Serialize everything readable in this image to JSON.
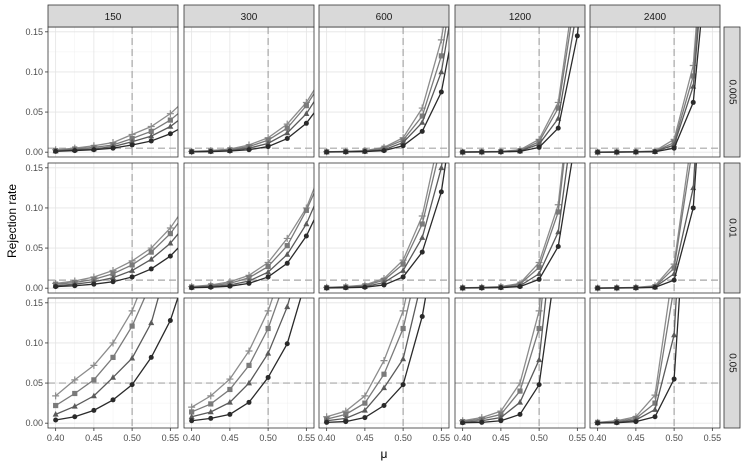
{
  "chart_data": {
    "type": "line",
    "facet_columns": [
      "150",
      "300",
      "600",
      "1200",
      "2400"
    ],
    "facet_rows": [
      "0.005",
      "0.01",
      "0.05"
    ],
    "xlabel": "μ",
    "ylabel": "Rejection rate",
    "xlim": [
      0.39,
      0.56
    ],
    "ylim": [
      -0.006,
      0.156
    ],
    "x_ticks": [
      0.4,
      0.45,
      0.5,
      0.55
    ],
    "x_tick_labels": [
      "0.40",
      "0.45",
      "0.50",
      "0.55"
    ],
    "y_ticks": [
      0.0,
      0.05,
      0.1,
      0.15
    ],
    "y_tick_labels": [
      "0.00",
      "0.05",
      "0.10",
      "0.15"
    ],
    "vertical_reference_x": 0.5,
    "horizontal_reference_y_by_row": [
      0.005,
      0.01,
      0.05
    ],
    "x": [
      0.4,
      0.425,
      0.45,
      0.475,
      0.5,
      0.525,
      0.55,
      0.575
    ],
    "series_styles": [
      {
        "marker": "plus",
        "color": "#8c8c8c"
      },
      {
        "marker": "square",
        "color": "#7a7a7a"
      },
      {
        "marker": "triangle",
        "color": "#5a5a5a"
      },
      {
        "marker": "circle",
        "color": "#2a2a2a"
      }
    ],
    "grid": true,
    "panels": [
      [
        {
          "series": [
            [
              0.003,
              0.005,
              0.008,
              0.012,
              0.022,
              0.032,
              0.048,
              0.07
            ],
            [
              0.002,
              0.004,
              0.006,
              0.009,
              0.017,
              0.026,
              0.04,
              0.06
            ],
            [
              0.0015,
              0.003,
              0.004,
              0.007,
              0.013,
              0.02,
              0.032,
              0.05
            ],
            [
              0.001,
              0.002,
              0.003,
              0.005,
              0.009,
              0.014,
              0.023,
              0.036
            ]
          ]
        },
        {
          "series": [
            [
              0.001,
              0.002,
              0.004,
              0.009,
              0.018,
              0.035,
              0.062,
              0.1
            ],
            [
              0.0008,
              0.0015,
              0.003,
              0.007,
              0.015,
              0.03,
              0.058,
              0.095
            ],
            [
              0.0006,
              0.001,
              0.002,
              0.005,
              0.011,
              0.024,
              0.048,
              0.085
            ],
            [
              0.0004,
              0.0008,
              0.0015,
              0.003,
              0.007,
              0.017,
              0.036,
              0.068
            ]
          ]
        },
        {
          "series": [
            [
              0.0005,
              0.001,
              0.002,
              0.006,
              0.018,
              0.055,
              0.14,
              0.3
            ],
            [
              0.0004,
              0.0008,
              0.0015,
              0.005,
              0.015,
              0.045,
              0.12,
              0.27
            ],
            [
              0.0003,
              0.0006,
              0.001,
              0.003,
              0.012,
              0.037,
              0.1,
              0.24
            ],
            [
              0.0002,
              0.0004,
              0.0008,
              0.002,
              0.008,
              0.026,
              0.075,
              0.2
            ]
          ]
        },
        {
          "series": [
            [
              0.0003,
              0.0006,
              0.001,
              0.003,
              0.016,
              0.062,
              0.23,
              0.5
            ],
            [
              0.0002,
              0.0004,
              0.0008,
              0.002,
              0.013,
              0.055,
              0.21,
              0.48
            ],
            [
              0.0002,
              0.0003,
              0.0006,
              0.0015,
              0.01,
              0.042,
              0.18,
              0.44
            ],
            [
              0.0001,
              0.0002,
              0.0004,
              0.001,
              0.006,
              0.03,
              0.145,
              0.4
            ]
          ]
        },
        {
          "series": [
            [
              0.0001,
              0.0003,
              0.0006,
              0.0015,
              0.016,
              0.108,
              0.42,
              0.8
            ],
            [
              0.0001,
              0.0002,
              0.0005,
              0.001,
              0.012,
              0.095,
              0.39,
              0.78
            ],
            [
              0.0001,
              0.0002,
              0.0004,
              0.0008,
              0.009,
              0.082,
              0.36,
              0.75
            ],
            [
              0.0001,
              0.0001,
              0.0002,
              0.0005,
              0.005,
              0.062,
              0.31,
              0.7
            ]
          ]
        }
      ],
      [
        {
          "series": [
            [
              0.006,
              0.009,
              0.014,
              0.022,
              0.034,
              0.05,
              0.075,
              0.11
            ],
            [
              0.005,
              0.007,
              0.011,
              0.018,
              0.029,
              0.045,
              0.068,
              0.1
            ],
            [
              0.003,
              0.005,
              0.008,
              0.013,
              0.022,
              0.036,
              0.056,
              0.085
            ],
            [
              0.002,
              0.003,
              0.005,
              0.008,
              0.014,
              0.024,
              0.04,
              0.065
            ]
          ]
        },
        {
          "series": [
            [
              0.002,
              0.004,
              0.008,
              0.016,
              0.032,
              0.062,
              0.1,
              0.16
            ],
            [
              0.0015,
              0.003,
              0.006,
              0.013,
              0.027,
              0.053,
              0.097,
              0.15
            ],
            [
              0.001,
              0.002,
              0.004,
              0.009,
              0.02,
              0.042,
              0.08,
              0.135
            ],
            [
              0.0006,
              0.0012,
              0.0025,
              0.006,
              0.014,
              0.031,
              0.065,
              0.115
            ]
          ]
        },
        {
          "series": [
            [
              0.001,
              0.002,
              0.004,
              0.012,
              0.035,
              0.09,
              0.2,
              0.4
            ],
            [
              0.0008,
              0.0015,
              0.003,
              0.01,
              0.03,
              0.08,
              0.18,
              0.37
            ],
            [
              0.0005,
              0.001,
              0.002,
              0.007,
              0.022,
              0.063,
              0.15,
              0.33
            ],
            [
              0.0003,
              0.0006,
              0.0012,
              0.004,
              0.014,
              0.045,
              0.12,
              0.28
            ]
          ]
        },
        {
          "series": [
            [
              0.0005,
              0.001,
              0.002,
              0.006,
              0.032,
              0.104,
              0.32,
              0.6
            ],
            [
              0.0004,
              0.0008,
              0.0015,
              0.005,
              0.026,
              0.095,
              0.3,
              0.58
            ],
            [
              0.0003,
              0.0006,
              0.001,
              0.003,
              0.018,
              0.07,
              0.25,
              0.54
            ],
            [
              0.0002,
              0.0004,
              0.0007,
              0.002,
              0.011,
              0.052,
              0.2,
              0.5
            ]
          ]
        },
        {
          "series": [
            [
              0.0002,
              0.0005,
              0.001,
              0.003,
              0.03,
              0.2,
              0.6,
              0.9
            ],
            [
              0.0002,
              0.0004,
              0.0008,
              0.002,
              0.025,
              0.18,
              0.58,
              0.88
            ],
            [
              0.0001,
              0.0003,
              0.0006,
              0.0015,
              0.018,
              0.125,
              0.5,
              0.85
            ],
            [
              0.0001,
              0.0002,
              0.0004,
              0.001,
              0.01,
              0.1,
              0.45,
              0.8
            ]
          ]
        }
      ],
      [
        {
          "series": [
            [
              0.034,
              0.054,
              0.072,
              0.1,
              0.14,
              0.2,
              0.28,
              0.38
            ],
            [
              0.022,
              0.037,
              0.054,
              0.082,
              0.121,
              0.175,
              0.25,
              0.35
            ],
            [
              0.011,
              0.021,
              0.034,
              0.057,
              0.081,
              0.125,
              0.21,
              0.31
            ],
            [
              0.004,
              0.008,
              0.016,
              0.029,
              0.048,
              0.082,
              0.128,
              0.2
            ]
          ]
        },
        {
          "series": [
            [
              0.02,
              0.034,
              0.055,
              0.09,
              0.14,
              0.21,
              0.3,
              0.42
            ],
            [
              0.014,
              0.024,
              0.042,
              0.072,
              0.118,
              0.185,
              0.27,
              0.39
            ],
            [
              0.008,
              0.014,
              0.026,
              0.05,
              0.087,
              0.145,
              0.23,
              0.35
            ],
            [
              0.003,
              0.006,
              0.011,
              0.026,
              0.057,
              0.099,
              0.18,
              0.29
            ]
          ]
        },
        {
          "series": [
            [
              0.008,
              0.015,
              0.034,
              0.078,
              0.14,
              0.25,
              0.42,
              0.6
            ],
            [
              0.005,
              0.011,
              0.025,
              0.061,
              0.118,
              0.22,
              0.38,
              0.56
            ],
            [
              0.003,
              0.006,
              0.016,
              0.044,
              0.08,
              0.18,
              0.33,
              0.52
            ],
            [
              0.001,
              0.002,
              0.007,
              0.022,
              0.048,
              0.133,
              0.27,
              0.46
            ]
          ]
        },
        {
          "series": [
            [
              0.003,
              0.007,
              0.015,
              0.05,
              0.14,
              0.4,
              0.75,
              0.95
            ],
            [
              0.002,
              0.005,
              0.011,
              0.04,
              0.118,
              0.36,
              0.72,
              0.93
            ],
            [
              0.001,
              0.003,
              0.007,
              0.026,
              0.079,
              0.3,
              0.66,
              0.9
            ],
            [
              0.0005,
              0.001,
              0.003,
              0.011,
              0.048,
              0.22,
              0.58,
              0.86
            ]
          ]
        },
        {
          "series": [
            [
              0.001,
              0.003,
              0.008,
              0.035,
              0.2,
              0.65,
              0.95,
              1.0
            ],
            [
              0.001,
              0.002,
              0.006,
              0.025,
              0.17,
              0.6,
              0.93,
              1.0
            ],
            [
              0.0005,
              0.001,
              0.004,
              0.017,
              0.11,
              0.52,
              0.9,
              0.99
            ],
            [
              0.0002,
              0.0005,
              0.002,
              0.008,
              0.055,
              0.42,
              0.85,
              0.98
            ]
          ]
        }
      ]
    ]
  }
}
